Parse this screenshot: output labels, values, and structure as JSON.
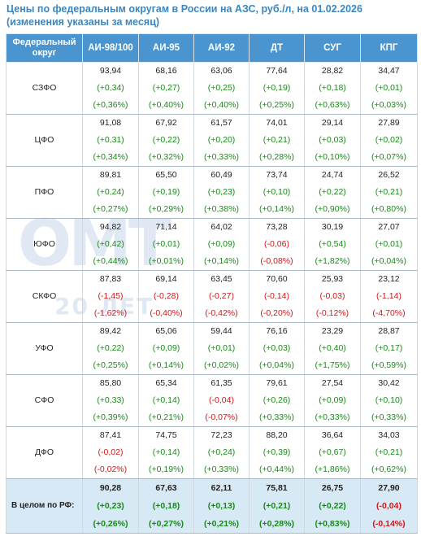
{
  "title": {
    "line1": "Цены по федеральным округам в России на АЗС, руб./л, на 01.02.2026",
    "line2": "(изменения указаны за месяц)"
  },
  "headers": [
    "Федеральный округ",
    "АИ-98/100",
    "АИ-95",
    "АИ-92",
    "ДТ",
    "СУГ",
    "КПГ"
  ],
  "rows": [
    {
      "region": "СЗФО",
      "prices": [
        "93,94",
        "68,16",
        "63,06",
        "77,64",
        "28,82",
        "34,47"
      ],
      "abs": [
        "(+0,34)",
        "(+0,27)",
        "(+0,25)",
        "(+0,19)",
        "(+0,18)",
        "(+0,01)"
      ],
      "pct": [
        "(+0,36%)",
        "(+0,40%)",
        "(+0,40%)",
        "(+0,25%)",
        "(+0,63%)",
        "(+0,03%)"
      ]
    },
    {
      "region": "ЦФО",
      "prices": [
        "91,08",
        "67,92",
        "61,57",
        "74,01",
        "29,14",
        "27,89"
      ],
      "abs": [
        "(+0,31)",
        "(+0,22)",
        "(+0,20)",
        "(+0,21)",
        "(+0,03)",
        "(+0,02)"
      ],
      "pct": [
        "(+0,34%)",
        "(+0,32%)",
        "(+0,33%)",
        "(+0,28%)",
        "(+0,10%)",
        "(+0,07%)"
      ]
    },
    {
      "region": "ПФО",
      "prices": [
        "89,81",
        "65,50",
        "60,49",
        "73,74",
        "24,74",
        "26,52"
      ],
      "abs": [
        "(+0,24)",
        "(+0,19)",
        "(+0,23)",
        "(+0,10)",
        "(+0,22)",
        "(+0,21)"
      ],
      "pct": [
        "(+0,27%)",
        "(+0,29%)",
        "(+0,38%)",
        "(+0,14%)",
        "(+0,90%)",
        "(+0,80%)"
      ]
    },
    {
      "region": "ЮФО",
      "prices": [
        "94,82",
        "71,14",
        "64,02",
        "73,28",
        "30,19",
        "27,07"
      ],
      "abs": [
        "(+0,42)",
        "(+0,01)",
        "(+0,09)",
        "(-0,06)",
        "(+0,54)",
        "(+0,01)"
      ],
      "pct": [
        "(+0,44%)",
        "(+0,01%)",
        "(+0,14%)",
        "(-0,08%)",
        "(+1,82%)",
        "(+0,04%)"
      ]
    },
    {
      "region": "СКФО",
      "prices": [
        "87,83",
        "69,14",
        "63,45",
        "70,60",
        "25,93",
        "23,12"
      ],
      "abs": [
        "(-1,45)",
        "(-0,28)",
        "(-0,27)",
        "(-0,14)",
        "(-0,03)",
        "(-1,14)"
      ],
      "pct": [
        "(-1,62%)",
        "(-0,40%)",
        "(-0,42%)",
        "(-0,20%)",
        "(-0,12%)",
        "(-4,70%)"
      ]
    },
    {
      "region": "УФО",
      "prices": [
        "89,42",
        "65,06",
        "59,44",
        "76,16",
        "23,29",
        "28,87"
      ],
      "abs": [
        "(+0,22)",
        "(+0,09)",
        "(+0,01)",
        "(+0,03)",
        "(+0,40)",
        "(+0,17)"
      ],
      "pct": [
        "(+0,25%)",
        "(+0,14%)",
        "(+0,02%)",
        "(+0,04%)",
        "(+1,75%)",
        "(+0,59%)"
      ]
    },
    {
      "region": "СФО",
      "prices": [
        "85,80",
        "65,34",
        "61,35",
        "79,61",
        "27,54",
        "30,42"
      ],
      "abs": [
        "(+0,33)",
        "(+0,14)",
        "(-0,04)",
        "(+0,26)",
        "(+0,09)",
        "(+0,10)"
      ],
      "pct": [
        "(+0,39%)",
        "(+0,21%)",
        "(-0,07%)",
        "(+0,33%)",
        "(+0,33%)",
        "(+0,33%)"
      ]
    },
    {
      "region": "ДФО",
      "prices": [
        "87,41",
        "74,75",
        "72,23",
        "88,20",
        "36,64",
        "34,03"
      ],
      "abs": [
        "(-0,02)",
        "(+0,14)",
        "(+0,24)",
        "(+0,39)",
        "(+0,67)",
        "(+0,21)"
      ],
      "pct": [
        "(-0,02%)",
        "(+0,19%)",
        "(+0,33%)",
        "(+0,44%)",
        "(+1,86%)",
        "(+0,62%)"
      ]
    }
  ],
  "total": {
    "region": "В целом по РФ:",
    "prices": [
      "90,28",
      "67,63",
      "62,11",
      "75,81",
      "26,75",
      "27,90"
    ],
    "abs": [
      "(+0,23)",
      "(+0,18)",
      "(+0,13)",
      "(+0,21)",
      "(+0,22)",
      "(-0,04)"
    ],
    "pct": [
      "(+0,26%)",
      "(+0,27%)",
      "(+0,21%)",
      "(+0,28%)",
      "(+0,83%)",
      "(-0,14%)"
    ]
  },
  "watermark": {
    "logo": "OMT",
    "sub": "20 ЛЕТ"
  },
  "colors": {
    "header_bg": "#4a95cf",
    "title": "#3b86bf",
    "positive": "#1a8a1a",
    "negative": "#d01818",
    "total_bg": "#d6e9f5"
  }
}
